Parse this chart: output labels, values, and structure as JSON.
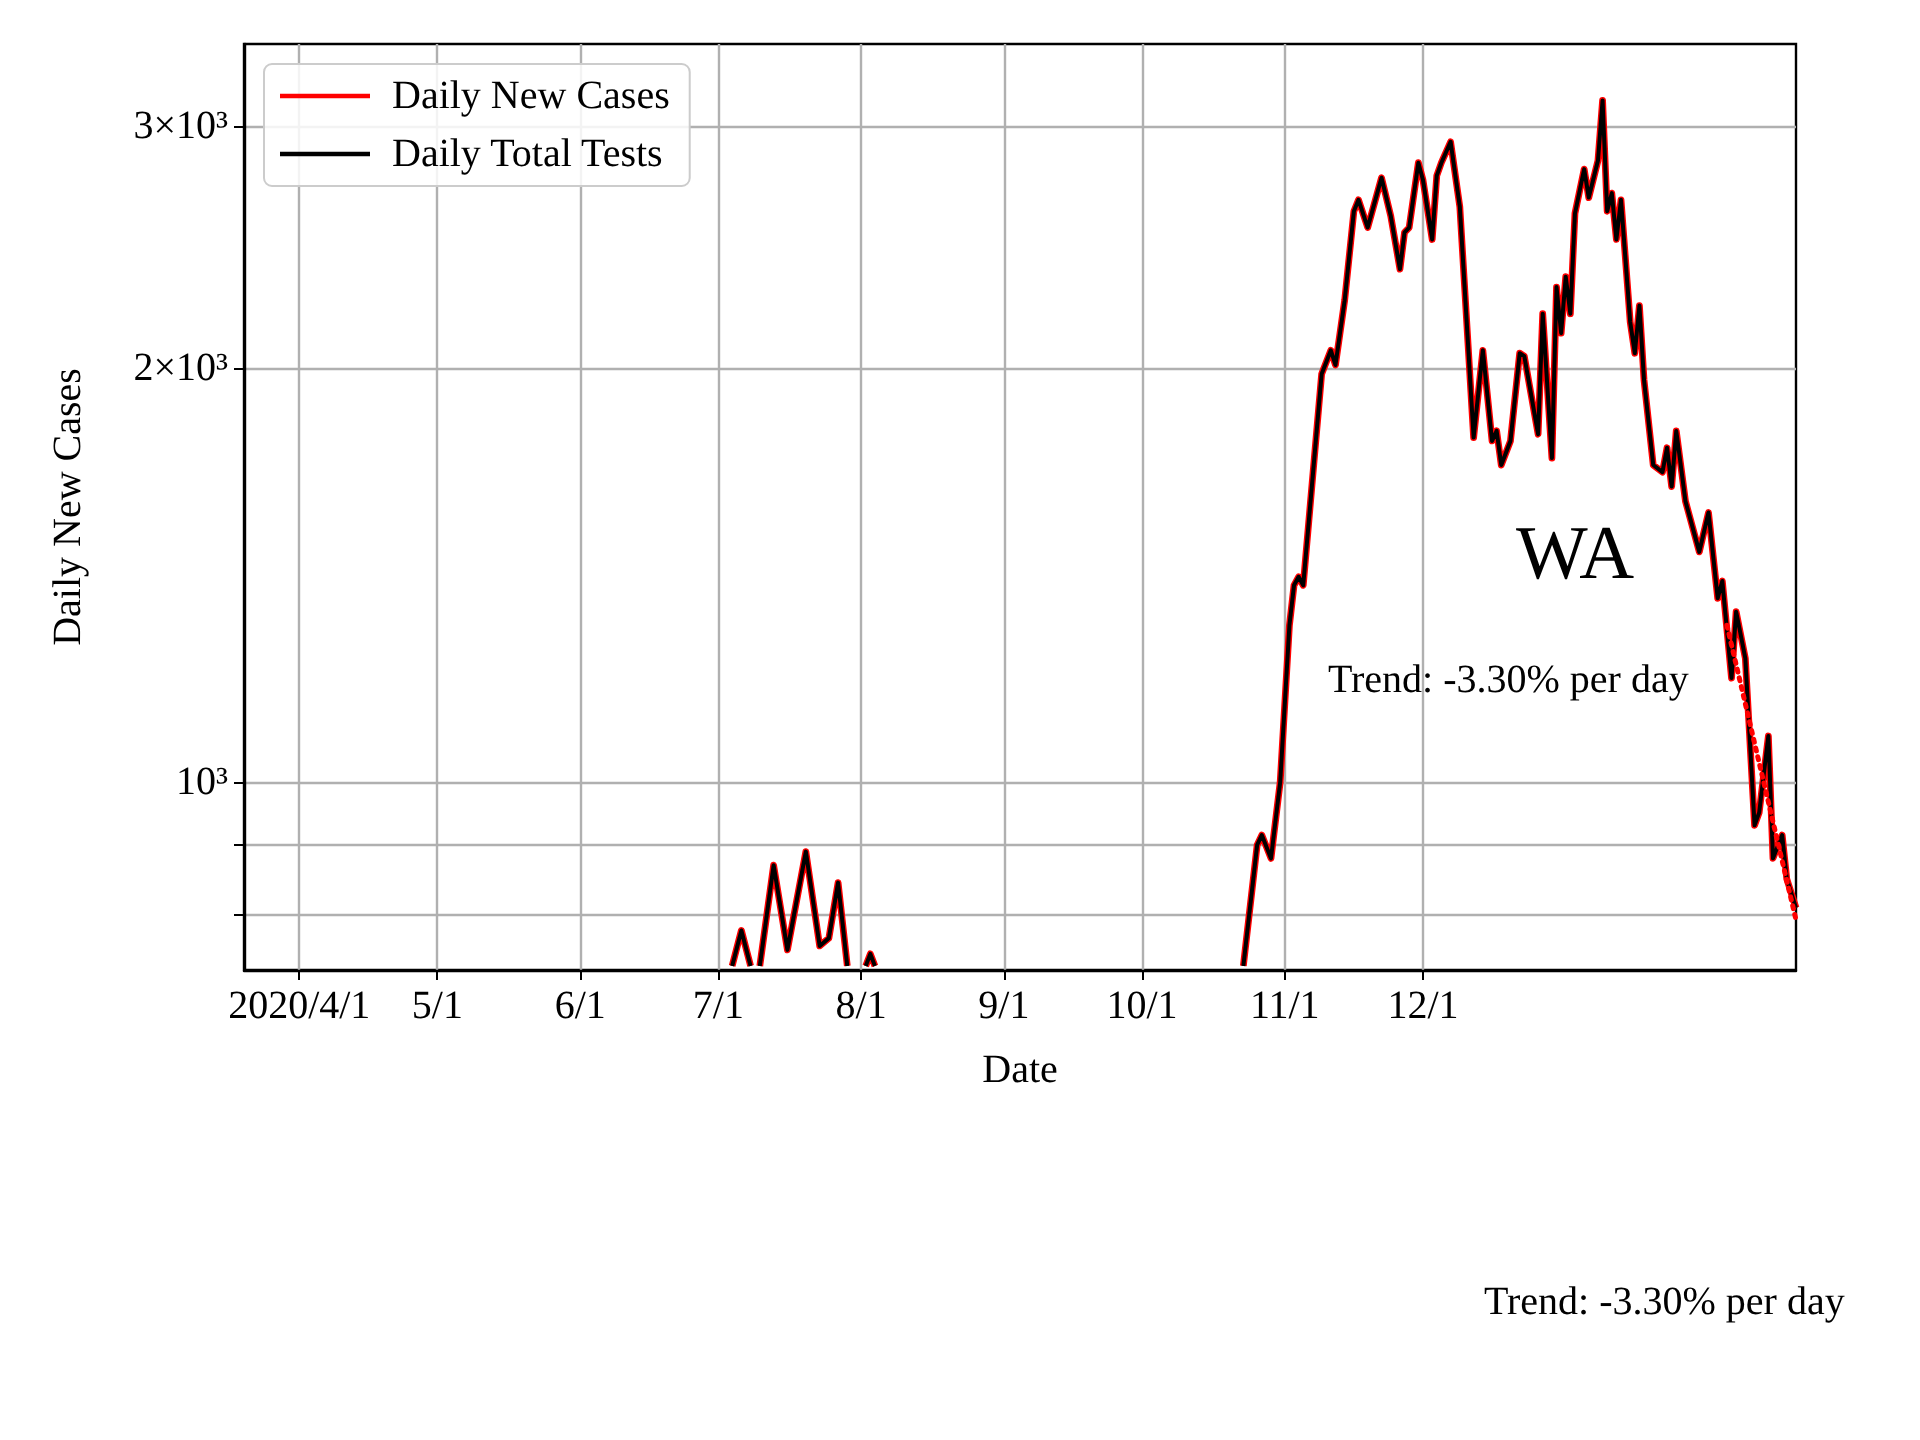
{
  "chart_data": {
    "type": "line",
    "xlabel": "Date",
    "ylabel": "Daily New Cases",
    "annotations": [
      "WA",
      "Trend: -3.30% per day",
      "Trend: -3.30% per day"
    ],
    "x": [
      "2020-07-04",
      "2020-07-06",
      "2020-07-08",
      "2020-07-09",
      "2020-07-10",
      "2020-07-13",
      "2020-07-16",
      "2020-07-20",
      "2020-07-23",
      "2020-07-25",
      "2020-07-27",
      "2020-07-29",
      "2020-07-31",
      "2020-08-02",
      "2020-08-03",
      "2020-08-04",
      "2020-08-06",
      "2020-10-23",
      "2020-10-26",
      "2020-10-27",
      "2020-10-29",
      "2020-10-31",
      "2020-11-02",
      "2020-11-03",
      "2020-11-04",
      "2020-11-05",
      "2020-11-09",
      "2020-11-11",
      "2020-11-12",
      "2020-11-14",
      "2020-11-16",
      "2020-11-17",
      "2020-11-19",
      "2020-11-22",
      "2020-11-24",
      "2020-11-26",
      "2020-11-27",
      "2020-11-28",
      "2020-11-30",
      "2020-12-01",
      "2020-12-03",
      "2020-12-04",
      "2020-12-05",
      "2020-12-07",
      "2020-12-09",
      "2020-12-12",
      "2020-12-14",
      "2020-12-16",
      "2020-12-17",
      "2020-12-18",
      "2020-12-20",
      "2020-12-22",
      "2020-12-23",
      "2020-12-26",
      "2020-12-27",
      "2020-12-29",
      "2020-12-30",
      "2020-12-31",
      "2021-01-01",
      "2021-01-02",
      "2021-01-03",
      "2021-01-05",
      "2021-01-06",
      "2021-01-08",
      "2021-01-09",
      "2021-01-10",
      "2021-01-11",
      "2021-01-12",
      "2021-01-13",
      "2021-01-15",
      "2021-01-16",
      "2021-01-17",
      "2021-01-18",
      "2021-01-20",
      "2021-01-22",
      "2021-01-23",
      "2021-01-24",
      "2021-01-25",
      "2021-01-27",
      "2021-01-30",
      "2021-02-01",
      "2021-02-03",
      "2021-02-04",
      "2021-02-06",
      "2021-02-07",
      "2021-02-09",
      "2021-02-11",
      "2021-02-12",
      "2021-02-14",
      "2021-02-15",
      "2021-02-17",
      "2021-02-18",
      "2021-02-20"
    ],
    "series": [
      {
        "name": "Daily New Cases",
        "color": "#ff0000",
        "values": [
          735,
          780,
          735,
          null,
          735,
          870,
          755,
          890,
          760,
          770,
          845,
          735,
          null,
          735,
          750,
          735,
          null,
          735,
          900,
          915,
          880,
          1000,
          1300,
          1390,
          1410,
          1390,
          1980,
          2060,
          2010,
          2240,
          2600,
          2650,
          2530,
          2750,
          2580,
          2360,
          2510,
          2530,
          2820,
          2740,
          2480,
          2760,
          2820,
          2920,
          2620,
          1780,
          2060,
          1770,
          1800,
          1700,
          1770,
          2050,
          2040,
          1790,
          2190,
          1720,
          2290,
          2120,
          2330,
          2190,
          2590,
          2790,
          2660,
          2830,
          3130,
          2600,
          2680,
          2480,
          2650,
          2160,
          2050,
          2220,
          1960,
          1700,
          1680,
          1750,
          1640,
          1800,
          1600,
          1470,
          1570,
          1360,
          1400,
          1190,
          1330,
          1230,
          930,
          950,
          1080,
          880,
          915,
          850,
          810
        ]
      },
      {
        "name": "Daily Total Tests",
        "color": "#000000",
        "values": [
          735,
          780,
          735,
          null,
          735,
          870,
          755,
          890,
          760,
          770,
          845,
          735,
          null,
          735,
          750,
          735,
          null,
          735,
          900,
          915,
          880,
          1000,
          1300,
          1390,
          1410,
          1390,
          1980,
          2060,
          2010,
          2240,
          2600,
          2650,
          2530,
          2750,
          2580,
          2360,
          2510,
          2530,
          2820,
          2740,
          2480,
          2760,
          2820,
          2920,
          2620,
          1780,
          2060,
          1770,
          1800,
          1700,
          1770,
          2050,
          2040,
          1790,
          2190,
          1720,
          2290,
          2120,
          2330,
          2190,
          2590,
          2790,
          2660,
          2830,
          3130,
          2600,
          2680,
          2480,
          2650,
          2160,
          2050,
          2220,
          1960,
          1700,
          1680,
          1750,
          1640,
          1800,
          1600,
          1470,
          1570,
          1360,
          1400,
          1190,
          1330,
          1230,
          930,
          950,
          1080,
          880,
          915,
          850,
          810
        ]
      },
      {
        "type": "line",
        "color": "#ff0000",
        "line_style": "dotted",
        "x": [
          "2021-02-05",
          "2021-02-20"
        ],
        "values": [
          1300,
          794
        ]
      }
    ],
    "xlim": [
      "2020-03-20",
      "2021-02-20"
    ],
    "xticks": [
      {
        "value": "2020-04-01",
        "label": "2020/4/1"
      },
      {
        "value": "2020-05-01",
        "label": "5/1"
      },
      {
        "value": "2020-06-01",
        "label": "6/1"
      },
      {
        "value": "2020-07-01",
        "label": "7/1"
      },
      {
        "value": "2020-08-01",
        "label": "8/1"
      },
      {
        "value": "2020-09-01",
        "label": "9/1"
      },
      {
        "value": "2020-10-01",
        "label": "10/1"
      },
      {
        "value": "2020-11-01",
        "label": "11/1"
      },
      {
        "value": "2020-12-01",
        "label": "12/1"
      }
    ],
    "ylim": [
      730,
      3440
    ],
    "yticks": [
      {
        "value": 800,
        "label": null
      },
      {
        "value": 900,
        "label": null
      },
      {
        "value": 1000,
        "label": "10³"
      },
      {
        "value": 2000,
        "label": "2×10³"
      },
      {
        "value": 3000,
        "label": "3×10³"
      }
    ],
    "log": "y",
    "grid": true,
    "legend": "top left",
    "marker": "none",
    "line_style": "solid"
  }
}
